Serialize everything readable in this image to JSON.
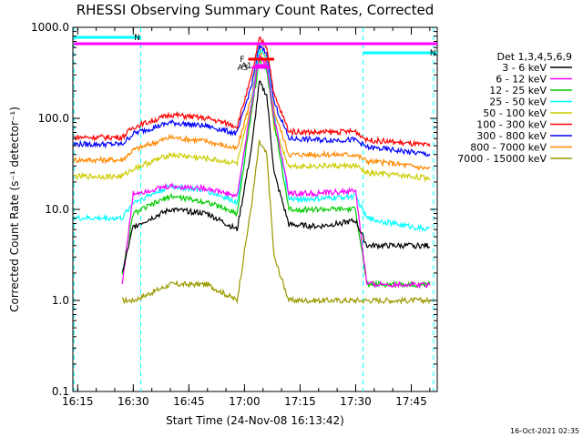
{
  "chart_data": {
    "type": "line",
    "title": "RHESSI Observing Summary Count Rates, Corrected",
    "xlabel": "Start Time (24-Nov-08 16:13:42)",
    "ylabel": "Corrected Count Rate (s⁻¹ detector⁻¹)",
    "yscale": "log",
    "xlim": [
      "16:13:42",
      "17:52"
    ],
    "ylim": [
      0.1,
      1000
    ],
    "x_ticks": [
      "16:15",
      "16:30",
      "16:45",
      "17:00",
      "17:15",
      "17:30",
      "17:45"
    ],
    "y_ticks": [
      "0.1",
      "1.0",
      "10.0",
      "100.0",
      "1000.0"
    ],
    "legend_title": "Det 1,3,4,5,6,9",
    "legend_position": "right",
    "series": [
      {
        "name": "3 - 6 keV",
        "color": "#000000",
        "x": [
          "16:27",
          "16:30",
          "16:40",
          "16:50",
          "16:58",
          "17:02",
          "17:04",
          "17:06",
          "17:08",
          "17:12",
          "17:20",
          "17:30",
          "17:33",
          "17:40",
          "17:50"
        ],
        "y": [
          2,
          6.5,
          10,
          9,
          6,
          50,
          250,
          180,
          25,
          6.8,
          6.5,
          7.5,
          4,
          4,
          4
        ]
      },
      {
        "name": "6 - 12 keV",
        "color": "#ff00ff",
        "x": [
          "16:27",
          "16:30",
          "16:40",
          "16:50",
          "16:58",
          "17:02",
          "17:04",
          "17:06",
          "17:08",
          "17:12",
          "17:20",
          "17:30",
          "17:33",
          "17:40",
          "17:50"
        ],
        "y": [
          1.5,
          15,
          18,
          17,
          14,
          150,
          480,
          400,
          100,
          15,
          15,
          16,
          1.5,
          1.5,
          1.5
        ]
      },
      {
        "name": "12 - 25 keV",
        "color": "#00cc00",
        "x": [
          "16:27",
          "16:30",
          "16:40",
          "16:50",
          "16:58",
          "17:02",
          "17:04",
          "17:06",
          "17:08",
          "17:12",
          "17:20",
          "17:30",
          "17:33",
          "17:40",
          "17:50"
        ],
        "y": [
          2,
          9,
          14,
          12,
          9,
          130,
          420,
          350,
          90,
          10,
          10,
          10,
          1.5,
          1.5,
          1.5
        ]
      },
      {
        "name": "25 - 50 keV",
        "color": "#00ffff",
        "x": [
          "16:14",
          "16:27",
          "16:30",
          "16:40",
          "16:50",
          "16:58",
          "17:02",
          "17:04",
          "17:06",
          "17:08",
          "17:12",
          "17:20",
          "17:30",
          "17:33",
          "17:40",
          "17:50"
        ],
        "y": [
          8,
          8,
          12,
          18,
          16,
          12,
          160,
          560,
          450,
          110,
          13,
          13,
          14,
          8,
          7,
          6
        ]
      },
      {
        "name": "50 - 100 keV",
        "color": "#cccc00",
        "x": [
          "16:14",
          "16:27",
          "16:30",
          "16:40",
          "16:50",
          "16:58",
          "17:02",
          "17:04",
          "17:06",
          "17:08",
          "17:12",
          "17:20",
          "17:30",
          "17:33",
          "17:40",
          "17:50"
        ],
        "y": [
          23,
          23,
          28,
          40,
          36,
          32,
          140,
          500,
          420,
          80,
          30,
          30,
          30,
          25,
          24,
          22
        ]
      },
      {
        "name": "100 - 300 keV",
        "color": "#ff0000",
        "x": [
          "16:14",
          "16:27",
          "16:30",
          "16:40",
          "16:50",
          "16:58",
          "17:02",
          "17:04",
          "17:06",
          "17:08",
          "17:12",
          "17:20",
          "17:30",
          "17:33",
          "17:40",
          "17:50"
        ],
        "y": [
          62,
          62,
          80,
          110,
          100,
          82,
          300,
          750,
          620,
          180,
          72,
          70,
          72,
          58,
          55,
          50
        ]
      },
      {
        "name": "300 - 800 keV",
        "color": "#0000ff",
        "x": [
          "16:14",
          "16:27",
          "16:30",
          "16:40",
          "16:50",
          "16:58",
          "17:02",
          "17:04",
          "17:06",
          "17:08",
          "17:12",
          "17:20",
          "17:30",
          "17:33",
          "17:40",
          "17:50"
        ],
        "y": [
          52,
          52,
          68,
          90,
          82,
          68,
          240,
          620,
          520,
          150,
          60,
          58,
          58,
          48,
          45,
          40
        ]
      },
      {
        "name": "800 - 7000 keV",
        "color": "#ff8800",
        "x": [
          "16:14",
          "16:27",
          "16:30",
          "16:40",
          "16:50",
          "16:58",
          "17:02",
          "17:04",
          "17:06",
          "17:08",
          "17:12",
          "17:20",
          "17:30",
          "17:33",
          "17:40",
          "17:50"
        ],
        "y": [
          35,
          35,
          45,
          62,
          56,
          46,
          180,
          560,
          460,
          120,
          40,
          40,
          40,
          34,
          32,
          28
        ]
      },
      {
        "name": "7000 - 15000 keV",
        "color": "#999900",
        "x": [
          "16:27",
          "16:30",
          "16:40",
          "16:50",
          "16:58",
          "17:02",
          "17:04",
          "17:06",
          "17:08",
          "17:12",
          "17:20",
          "17:30",
          "17:33",
          "17:40",
          "17:50"
        ],
        "y": [
          1,
          1,
          1.5,
          1.5,
          1,
          12,
          55,
          40,
          3,
          1,
          1,
          1,
          1,
          1,
          1
        ]
      }
    ],
    "annotations": [
      {
        "label": "N",
        "color": "#00ffff",
        "start": "16:14",
        "end": "16:32"
      },
      {
        "label": "N",
        "color": "#00ffff",
        "start": "17:32",
        "end": "17:52"
      },
      {
        "label": "",
        "color": "#ff00ff",
        "start": "16:14",
        "end": "17:52"
      },
      {
        "label": "F",
        "color": "#ff0000",
        "start": "17:01",
        "end": "17:08"
      },
      {
        "label": "A1",
        "color": "#ff00ff",
        "start": "17:03",
        "end": "17:06"
      },
      {
        "label": "A3",
        "color": "#ff00ff",
        "start": "17:02",
        "end": "17:07"
      }
    ],
    "vertical_lines": [
      "16:14",
      "16:32",
      "17:32",
      "17:51"
    ]
  },
  "footer": {
    "timestamp": "16-Oct-2021 02:35"
  }
}
